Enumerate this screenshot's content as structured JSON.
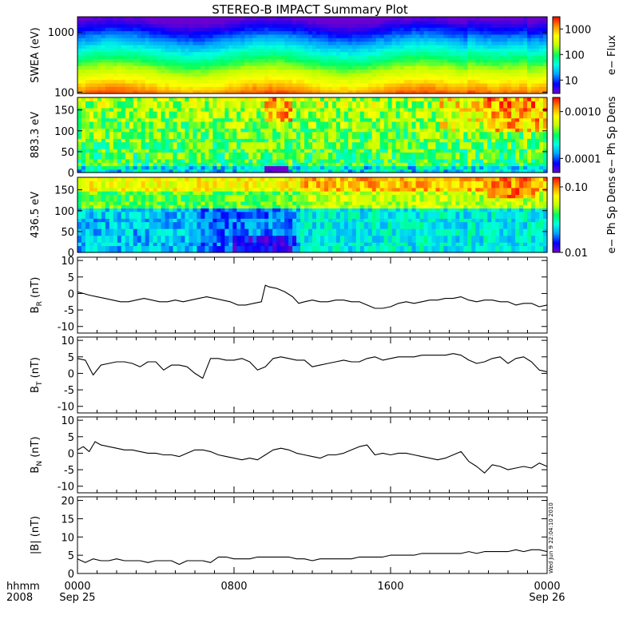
{
  "title": "STEREO-B IMPACT Summary Plot",
  "timestamp_text": "Wed Jun  9 22:04:10 2010",
  "x_axis": {
    "label_top": "hhmm",
    "label_bottom": "2008",
    "range_hours": [
      0,
      24
    ],
    "ticks": [
      {
        "hours": 0,
        "top": "0000",
        "bottom": "Sep 25"
      },
      {
        "hours": 8,
        "top": "0800",
        "bottom": ""
      },
      {
        "hours": 16,
        "top": "1600",
        "bottom": ""
      },
      {
        "hours": 24,
        "top": "0000",
        "bottom": "Sep 26"
      }
    ]
  },
  "colors": {
    "colormap": [
      "#6a00d0",
      "#0000ff",
      "#00a0ff",
      "#00ffe0",
      "#00ff60",
      "#c0ff00",
      "#ffff00",
      "#ff9000",
      "#ff0000"
    ],
    "trace": "#000000"
  },
  "chart_data": [
    {
      "type": "heatmap",
      "ylabel": "SWEA (eV)",
      "y_scale": "log",
      "ylim": [
        95,
        1800
      ],
      "y_ticks": [
        {
          "v": 100,
          "t": "100"
        },
        {
          "v": 1000,
          "t": "1000"
        }
      ],
      "colorbar": {
        "label": "e− Flux",
        "scale": "log",
        "range": [
          3,
          3000
        ],
        "ticks": [
          {
            "v": 10,
            "t": "10"
          },
          {
            "v": 100,
            "t": "100"
          },
          {
            "v": 1000,
            "t": "1000"
          }
        ]
      }
    },
    {
      "type": "heatmap",
      "ylabel": "883.3 eV",
      "y_scale": "linear",
      "ylim": [
        0,
        180
      ],
      "y_ticks": [
        {
          "v": 0,
          "t": "0"
        },
        {
          "v": 50,
          "t": "50"
        },
        {
          "v": 100,
          "t": "100"
        },
        {
          "v": 150,
          "t": "150"
        }
      ],
      "colorbar": {
        "label": "e− Ph Sp Dens",
        "scale": "log",
        "range": [
          5e-05,
          0.002
        ],
        "ticks": [
          {
            "v": 0.0001,
            "t": "0.0001"
          },
          {
            "v": 0.001,
            "t": "0.0010"
          }
        ]
      }
    },
    {
      "type": "heatmap",
      "ylabel": "436.5 eV",
      "y_scale": "linear",
      "ylim": [
        0,
        180
      ],
      "y_ticks": [
        {
          "v": 0,
          "t": "0"
        },
        {
          "v": 50,
          "t": "50"
        },
        {
          "v": 100,
          "t": "100"
        },
        {
          "v": 150,
          "t": "150"
        }
      ],
      "colorbar": {
        "label": "e− Ph Sp Dens",
        "scale": "log",
        "range": [
          0.01,
          0.14
        ],
        "ticks": [
          {
            "v": 0.01,
            "t": "0.01"
          },
          {
            "v": 0.1,
            "t": "0.10"
          }
        ]
      }
    },
    {
      "type": "line",
      "ylabel_main": "B",
      "ylabel_sub": "R",
      "ylabel_unit": " (nT)",
      "ylim": [
        -12,
        11
      ],
      "y_ticks": [
        -10,
        -5,
        0,
        5,
        10
      ],
      "x": [
        0,
        0.3,
        0.6,
        1,
        1.4,
        1.8,
        2.2,
        2.6,
        3,
        3.4,
        3.8,
        4.2,
        4.6,
        5,
        5.4,
        5.8,
        6.2,
        6.6,
        7,
        7.4,
        7.8,
        8.2,
        8.6,
        9,
        9.4,
        9.6,
        9.8,
        10.2,
        10.6,
        11,
        11.3,
        11.6,
        12,
        12.4,
        12.8,
        13.2,
        13.6,
        14,
        14.4,
        14.8,
        15.2,
        15.6,
        16,
        16.4,
        16.8,
        17.2,
        17.6,
        18,
        18.4,
        18.8,
        19.2,
        19.6,
        20,
        20.4,
        20.8,
        21.2,
        21.6,
        22,
        22.4,
        22.8,
        23.2,
        23.6,
        24
      ],
      "y": [
        0.5,
        0,
        -0.5,
        -1,
        -1.5,
        -2,
        -2.5,
        -2.5,
        -2,
        -1.5,
        -2,
        -2.5,
        -2.5,
        -2,
        -2.5,
        -2,
        -1.5,
        -1,
        -1.5,
        -2,
        -2.5,
        -3.5,
        -3.5,
        -3,
        -2.5,
        2.5,
        2,
        1.5,
        0.5,
        -1,
        -3,
        -2.5,
        -2,
        -2.5,
        -2.5,
        -2,
        -2,
        -2.5,
        -2.5,
        -3.5,
        -4.5,
        -4.5,
        -4,
        -3,
        -2.5,
        -3,
        -2.5,
        -2,
        -2,
        -1.5,
        -1.5,
        -1,
        -2,
        -2.5,
        -2,
        -2,
        -2.5,
        -2.5,
        -3.5,
        -3,
        -3,
        -4,
        -3.5
      ]
    },
    {
      "type": "line",
      "ylabel_main": "B",
      "ylabel_sub": "T",
      "ylabel_unit": " (nT)",
      "ylim": [
        -12,
        11
      ],
      "y_ticks": [
        -10,
        -5,
        0,
        5,
        10
      ],
      "x": [
        0,
        0.4,
        0.8,
        1.2,
        1.6,
        2,
        2.4,
        2.8,
        3.2,
        3.6,
        4,
        4.4,
        4.8,
        5.2,
        5.6,
        6,
        6.4,
        6.8,
        7.2,
        7.6,
        8,
        8.4,
        8.8,
        9.2,
        9.6,
        10,
        10.4,
        10.8,
        11.2,
        11.6,
        12,
        12.4,
        12.8,
        13.2,
        13.6,
        14,
        14.4,
        14.8,
        15.2,
        15.6,
        16,
        16.4,
        16.8,
        17.2,
        17.6,
        18,
        18.4,
        18.8,
        19.2,
        19.6,
        20,
        20.4,
        20.8,
        21.2,
        21.6,
        22,
        22.4,
        22.8,
        23.2,
        23.6,
        24
      ],
      "y": [
        4.5,
        4,
        -0.5,
        2.5,
        3,
        3.5,
        3.5,
        3,
        2,
        3.5,
        3.5,
        1,
        2.5,
        2.5,
        2,
        0,
        -1.5,
        4.5,
        4.5,
        4,
        4,
        4.5,
        3.5,
        1,
        2,
        4.5,
        5,
        4.5,
        4,
        4,
        2,
        2.5,
        3,
        3.5,
        4,
        3.5,
        3.5,
        4.5,
        5,
        4,
        4.5,
        5,
        5,
        5,
        5.5,
        5.5,
        5.5,
        5.5,
        6,
        5.5,
        4,
        3,
        3.5,
        4.5,
        5,
        3,
        4.5,
        5,
        3.5,
        1,
        0.5
      ]
    },
    {
      "type": "line",
      "ylabel_main": "B",
      "ylabel_sub": "N",
      "ylabel_unit": " (nT)",
      "ylim": [
        -12,
        11
      ],
      "y_ticks": [
        -10,
        -5,
        0,
        5,
        10
      ],
      "x": [
        0,
        0.3,
        0.6,
        0.9,
        1.2,
        1.6,
        2,
        2.4,
        2.8,
        3.2,
        3.6,
        4,
        4.4,
        4.8,
        5.2,
        5.6,
        6,
        6.4,
        6.8,
        7.2,
        7.6,
        8,
        8.4,
        8.8,
        9.2,
        9.6,
        10,
        10.4,
        10.8,
        11.2,
        11.6,
        12,
        12.4,
        12.8,
        13.2,
        13.6,
        14,
        14.4,
        14.8,
        15.2,
        15.6,
        16,
        16.4,
        16.8,
        17.2,
        17.6,
        18,
        18.4,
        18.8,
        19.2,
        19.6,
        20,
        20.4,
        20.8,
        21.2,
        21.6,
        22,
        22.4,
        22.8,
        23.2,
        23.6,
        24
      ],
      "y": [
        1,
        2,
        0.5,
        3.5,
        2.5,
        2,
        1.5,
        1,
        1,
        0.5,
        0,
        0,
        -0.5,
        -0.5,
        -1,
        0,
        1,
        1,
        0.5,
        -0.5,
        -1,
        -1.5,
        -2,
        -1.5,
        -2,
        -0.5,
        1,
        1.5,
        1,
        0,
        -0.5,
        -1,
        -1.5,
        -0.5,
        -0.5,
        0,
        1,
        2,
        2.5,
        -0.5,
        0,
        -0.5,
        0,
        0,
        -0.5,
        -1,
        -1.5,
        -2,
        -1.5,
        -0.5,
        0.5,
        -2.5,
        -4,
        -6,
        -3.5,
        -4,
        -5,
        -4.5,
        -4,
        -4.5,
        -3,
        -4
      ]
    },
    {
      "type": "line",
      "ylabel_main": "|B|",
      "ylabel_sub": "",
      "ylabel_unit": " (nT)",
      "ylim": [
        0,
        21
      ],
      "y_ticks": [
        0,
        5,
        10,
        15,
        20
      ],
      "x": [
        0,
        0.4,
        0.8,
        1.2,
        1.6,
        2,
        2.4,
        2.8,
        3.2,
        3.6,
        4,
        4.4,
        4.8,
        5.2,
        5.6,
        6,
        6.4,
        6.8,
        7.2,
        7.6,
        8,
        8.4,
        8.8,
        9.2,
        9.6,
        10,
        10.4,
        10.8,
        11.2,
        11.6,
        12,
        12.4,
        12.8,
        13.2,
        13.6,
        14,
        14.4,
        14.8,
        15.2,
        15.6,
        16,
        16.4,
        16.8,
        17.2,
        17.6,
        18,
        18.4,
        18.8,
        19.2,
        19.6,
        20,
        20.4,
        20.8,
        21.2,
        21.6,
        22,
        22.4,
        22.8,
        23.2,
        23.6,
        24
      ],
      "y": [
        4,
        3,
        4,
        3.5,
        3.5,
        4,
        3.5,
        3.5,
        3.5,
        3,
        3.5,
        3.5,
        3.5,
        2.5,
        3.5,
        3.5,
        3.5,
        3,
        4.5,
        4.5,
        4,
        4,
        4,
        4.5,
        4.5,
        4.5,
        4.5,
        4.5,
        4,
        4,
        3.5,
        4,
        4,
        4,
        4,
        4,
        4.5,
        4.5,
        4.5,
        4.5,
        5,
        5,
        5,
        5,
        5.5,
        5.5,
        5.5,
        5.5,
        5.5,
        5.5,
        6,
        5.5,
        6,
        6,
        6,
        6,
        6.5,
        6,
        6.5,
        6.5,
        6
      ]
    }
  ]
}
